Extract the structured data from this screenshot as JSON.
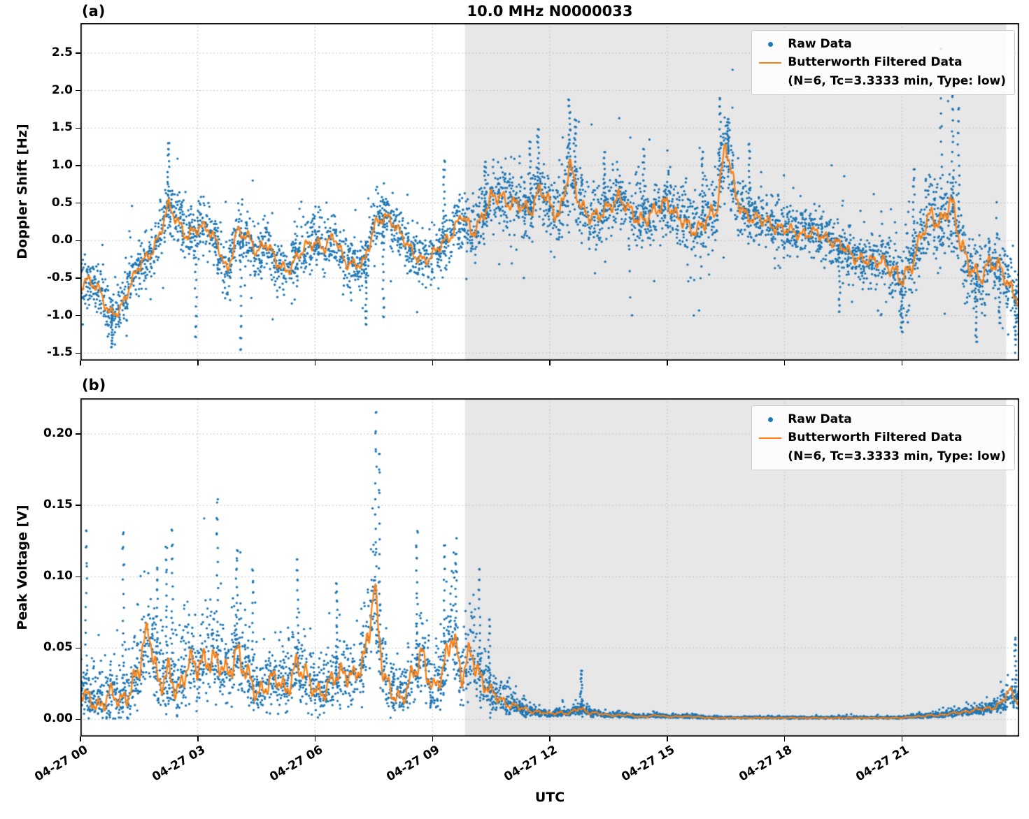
{
  "figure": {
    "bg": "#ffffff",
    "colors": {
      "raw": "#1f77b4",
      "filtered": "#ff7f0e",
      "shade": "#e7e7e7",
      "grid": "#c3c3c3",
      "spine": "#000000"
    }
  },
  "chart_data": [
    {
      "id": "a",
      "panel_label": "(a)",
      "type": "scatter",
      "title": "10.0 MHz N0000033",
      "ylabel": "Doppler Shift [Hz]",
      "ylim": [
        -1.6,
        2.9
      ],
      "yticks": [
        {
          "v": 2.5,
          "label": "2.5"
        },
        {
          "v": 2.0,
          "label": "2.0"
        },
        {
          "v": 1.5,
          "label": "1.5"
        },
        {
          "v": 1.0,
          "label": "1.0"
        },
        {
          "v": 0.5,
          "label": "0.5"
        },
        {
          "v": 0.0,
          "label": "0.0"
        },
        {
          "v": -0.5,
          "label": "-0.5"
        },
        {
          "v": -1.0,
          "label": "-1.0"
        },
        {
          "v": -1.5,
          "label": "-1.5"
        }
      ],
      "x_unit": "hours since 04-27 00:00 UTC",
      "x_range": [
        0,
        24
      ],
      "xticks": [
        0,
        3,
        6,
        9,
        12,
        15,
        18,
        21
      ],
      "shade_hours": [
        9.83,
        23.67
      ],
      "grid": true,
      "legend_position": "upper right",
      "series": [
        {
          "name": "Raw Data",
          "type": "scatter",
          "color": "#1f77b4"
        },
        {
          "name": "Butterworth Filtered Data",
          "sub": "(N=6, Tc=3.3333 min, Type: low)",
          "type": "line",
          "color": "#ff7f0e"
        }
      ],
      "t_step_hours": 0.25,
      "filtered": [
        -0.6,
        -0.55,
        -0.65,
        -1.0,
        -0.95,
        -0.6,
        -0.35,
        -0.2,
        0.05,
        0.45,
        0.25,
        0.05,
        0.15,
        0.2,
        -0.05,
        -0.45,
        0.15,
        0.05,
        -0.15,
        0.0,
        -0.3,
        -0.4,
        -0.25,
        -0.1,
        0.0,
        -0.1,
        0.05,
        -0.25,
        -0.35,
        -0.3,
        0.2,
        0.3,
        0.25,
        0.05,
        -0.2,
        -0.25,
        -0.2,
        -0.05,
        0.1,
        0.35,
        0.1,
        0.3,
        0.55,
        0.6,
        0.5,
        0.45,
        0.4,
        0.7,
        0.45,
        0.35,
        1.0,
        0.5,
        0.35,
        0.3,
        0.45,
        0.6,
        0.4,
        0.3,
        0.3,
        0.4,
        0.55,
        0.3,
        0.2,
        0.15,
        0.25,
        0.4,
        1.35,
        0.55,
        0.35,
        0.3,
        0.25,
        0.2,
        0.15,
        0.1,
        0.1,
        0.1,
        0.05,
        0.0,
        -0.1,
        -0.2,
        -0.25,
        -0.3,
        -0.25,
        -0.4,
        -0.55,
        -0.3,
        0.05,
        0.35,
        0.25,
        0.5,
        0.0,
        -0.35,
        -0.55,
        -0.25,
        -0.35,
        -0.65,
        -0.75
      ],
      "spread": [
        0.28,
        0.28,
        0.28,
        0.28,
        0.28,
        0.28,
        0.28,
        0.28,
        0.3,
        0.3,
        0.3,
        0.3,
        0.3,
        0.3,
        0.3,
        0.3,
        0.3,
        0.3,
        0.3,
        0.3,
        0.3,
        0.3,
        0.3,
        0.3,
        0.3,
        0.3,
        0.3,
        0.3,
        0.3,
        0.3,
        0.3,
        0.3,
        0.28,
        0.28,
        0.28,
        0.28,
        0.28,
        0.28,
        0.28,
        0.28,
        0.35,
        0.35,
        0.35,
        0.35,
        0.35,
        0.35,
        0.35,
        0.35,
        0.4,
        0.4,
        0.45,
        0.4,
        0.35,
        0.35,
        0.35,
        0.35,
        0.35,
        0.35,
        0.35,
        0.35,
        0.35,
        0.35,
        0.35,
        0.35,
        0.4,
        0.45,
        0.5,
        0.4,
        0.32,
        0.3,
        0.3,
        0.3,
        0.28,
        0.28,
        0.28,
        0.28,
        0.28,
        0.28,
        0.28,
        0.28,
        0.3,
        0.3,
        0.32,
        0.35,
        0.4,
        0.4,
        0.4,
        0.45,
        0.5,
        0.55,
        0.5,
        0.45,
        0.4,
        0.38,
        0.38,
        0.4,
        0.4
      ],
      "spikes": [
        [
          0.8,
          -1.42
        ],
        [
          2.25,
          1.3
        ],
        [
          2.95,
          -1.28
        ],
        [
          4.1,
          -1.45
        ],
        [
          7.3,
          -1.12
        ],
        [
          7.75,
          -1.02
        ],
        [
          9.3,
          1.05
        ],
        [
          10.35,
          1.05
        ],
        [
          11.5,
          1.32
        ],
        [
          11.7,
          1.48
        ],
        [
          12.5,
          1.88
        ],
        [
          12.65,
          1.6
        ],
        [
          13.4,
          1.18
        ],
        [
          14.4,
          1.22
        ],
        [
          15.9,
          1.18
        ],
        [
          16.35,
          1.9
        ],
        [
          16.55,
          1.62
        ],
        [
          17.1,
          1.28
        ],
        [
          19.4,
          -0.95
        ],
        [
          21.0,
          -1.22
        ],
        [
          21.3,
          0.95
        ],
        [
          22.0,
          2.55
        ],
        [
          22.3,
          2.08
        ],
        [
          22.45,
          1.75
        ],
        [
          22.9,
          -1.35
        ],
        [
          23.5,
          -1.1
        ],
        [
          23.9,
          -1.32
        ]
      ],
      "clamp_zero": false,
      "raw_note": "raw scatter = dense noise cloud around filtered line with half-width given by spread"
    },
    {
      "id": "b",
      "panel_label": "(b)",
      "type": "scatter",
      "ylabel": "Peak Voltage [V]",
      "xlabel": "UTC",
      "ylim": [
        -0.012,
        0.225
      ],
      "yticks": [
        {
          "v": 0.2,
          "label": "0.20"
        },
        {
          "v": 0.15,
          "label": "0.15"
        },
        {
          "v": 0.1,
          "label": "0.10"
        },
        {
          "v": 0.05,
          "label": "0.05"
        },
        {
          "v": 0.0,
          "label": "0.00"
        }
      ],
      "x_unit": "hours since 04-27 00:00 UTC",
      "x_range": [
        0,
        24
      ],
      "xticks": [
        0,
        3,
        6,
        9,
        12,
        15,
        18,
        21
      ],
      "xtick_labels": [
        "04-27 00",
        "04-27 03",
        "04-27 06",
        "04-27 09",
        "04-27 12",
        "04-27 15",
        "04-27 18",
        "04-27 21"
      ],
      "shade_hours": [
        9.83,
        23.67
      ],
      "grid": true,
      "legend_position": "upper right",
      "series": [
        {
          "name": "Raw Data",
          "type": "scatter",
          "color": "#1f77b4"
        },
        {
          "name": "Butterworth Filtered Data",
          "sub": "(N=6, Tc=3.3333 min, Type: low)",
          "type": "line",
          "color": "#ff7f0e"
        }
      ],
      "t_step_hours": 0.25,
      "filtered": [
        0.02,
        0.012,
        0.01,
        0.018,
        0.012,
        0.02,
        0.035,
        0.065,
        0.025,
        0.03,
        0.02,
        0.04,
        0.035,
        0.045,
        0.04,
        0.03,
        0.05,
        0.03,
        0.018,
        0.025,
        0.028,
        0.02,
        0.038,
        0.03,
        0.022,
        0.018,
        0.03,
        0.035,
        0.028,
        0.04,
        0.095,
        0.028,
        0.018,
        0.015,
        0.03,
        0.048,
        0.02,
        0.03,
        0.065,
        0.028,
        0.048,
        0.028,
        0.018,
        0.014,
        0.01,
        0.008,
        0.006,
        0.005,
        0.004,
        0.005,
        0.004,
        0.008,
        0.005,
        0.004,
        0.003,
        0.003,
        0.003,
        0.002,
        0.002,
        0.003,
        0.002,
        0.002,
        0.002,
        0.002,
        0.001,
        0.001,
        0.001,
        0.001,
        0.001,
        0.001,
        0.001,
        0.001,
        0.001,
        0.001,
        0.001,
        0.001,
        0.001,
        0.001,
        0.001,
        0.001,
        0.001,
        0.001,
        0.001,
        0.001,
        0.001,
        0.002,
        0.002,
        0.003,
        0.003,
        0.004,
        0.005,
        0.006,
        0.007,
        0.008,
        0.01,
        0.02,
        0.012
      ],
      "spread": [
        0.022,
        0.02,
        0.02,
        0.022,
        0.02,
        0.025,
        0.035,
        0.035,
        0.03,
        0.035,
        0.03,
        0.03,
        0.032,
        0.035,
        0.032,
        0.03,
        0.035,
        0.03,
        0.022,
        0.025,
        0.026,
        0.024,
        0.03,
        0.028,
        0.022,
        0.02,
        0.026,
        0.028,
        0.026,
        0.035,
        0.05,
        0.026,
        0.02,
        0.018,
        0.028,
        0.035,
        0.022,
        0.028,
        0.04,
        0.026,
        0.035,
        0.025,
        0.016,
        0.012,
        0.009,
        0.007,
        0.005,
        0.004,
        0.003,
        0.004,
        0.003,
        0.006,
        0.004,
        0.003,
        0.002,
        0.002,
        0.002,
        0.0015,
        0.0015,
        0.002,
        0.0015,
        0.0015,
        0.0015,
        0.0015,
        0.001,
        0.001,
        0.001,
        0.001,
        0.001,
        0.001,
        0.001,
        0.001,
        0.001,
        0.001,
        0.001,
        0.001,
        0.001,
        0.001,
        0.001,
        0.001,
        0.001,
        0.001,
        0.001,
        0.001,
        0.001,
        0.0015,
        0.0015,
        0.002,
        0.002,
        0.003,
        0.003,
        0.004,
        0.004,
        0.005,
        0.007,
        0.012,
        0.008
      ],
      "spikes": [
        [
          0.15,
          0.132
        ],
        [
          1.1,
          0.131
        ],
        [
          1.95,
          0.105
        ],
        [
          2.2,
          0.121
        ],
        [
          2.35,
          0.133
        ],
        [
          3.5,
          0.152
        ],
        [
          4.0,
          0.118
        ],
        [
          4.4,
          0.105
        ],
        [
          5.55,
          0.112
        ],
        [
          6.55,
          0.095
        ],
        [
          7.55,
          0.215
        ],
        [
          7.65,
          0.186
        ],
        [
          8.6,
          0.131
        ],
        [
          9.3,
          0.122
        ],
        [
          9.6,
          0.116
        ],
        [
          10.2,
          0.105
        ],
        [
          10.45,
          0.07
        ],
        [
          12.8,
          0.034
        ],
        [
          23.9,
          0.056
        ]
      ],
      "clamp_zero": true,
      "raw_note": "raw scatter = upward-skewed noise cloud above/around filtered line, floored near 0 V"
    }
  ]
}
